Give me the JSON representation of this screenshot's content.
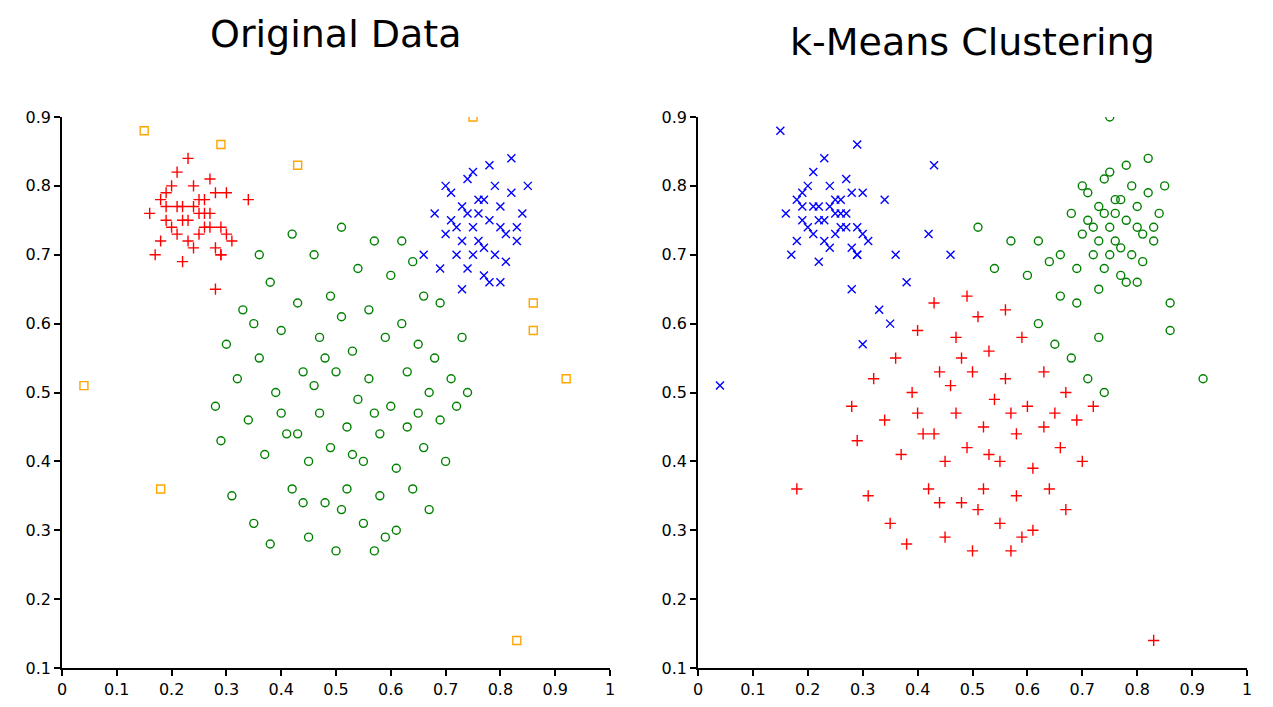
{
  "chart_data": [
    {
      "type": "scatter",
      "title": "Original Data",
      "xlim": [
        0,
        1
      ],
      "xticks": [
        0,
        0.1,
        0.2,
        0.3,
        0.4,
        0.5,
        0.6,
        0.7,
        0.8,
        0.9,
        1
      ],
      "ylim": [
        0.1,
        0.9
      ],
      "yticks": [
        0.1,
        0.2,
        0.3,
        0.4,
        0.5,
        0.6,
        0.7,
        0.8,
        0.9
      ],
      "grid": false,
      "series": [
        {
          "color": "#008000",
          "marker": "circle",
          "x": [
            0.28,
            0.29,
            0.3,
            0.31,
            0.32,
            0.33,
            0.34,
            0.35,
            0.36,
            0.36,
            0.37,
            0.38,
            0.38,
            0.39,
            0.4,
            0.41,
            0.42,
            0.42,
            0.43,
            0.44,
            0.45,
            0.45,
            0.46,
            0.47,
            0.47,
            0.48,
            0.49,
            0.49,
            0.5,
            0.5,
            0.51,
            0.51,
            0.52,
            0.52,
            0.53,
            0.54,
            0.54,
            0.55,
            0.55,
            0.56,
            0.56,
            0.57,
            0.57,
            0.58,
            0.58,
            0.59,
            0.6,
            0.6,
            0.61,
            0.61,
            0.62,
            0.63,
            0.63,
            0.64,
            0.64,
            0.65,
            0.66,
            0.66,
            0.67,
            0.67,
            0.68,
            0.69,
            0.69,
            0.7,
            0.71,
            0.72,
            0.73,
            0.74,
            0.62,
            0.44,
            0.4,
            0.46,
            0.53,
            0.48,
            0.57,
            0.43,
            0.51,
            0.35,
            0.59,
            0.65
          ],
          "values": [
            0.48,
            0.43,
            0.57,
            0.35,
            0.52,
            0.62,
            0.46,
            0.31,
            0.7,
            0.55,
            0.41,
            0.66,
            0.28,
            0.5,
            0.59,
            0.44,
            0.73,
            0.36,
            0.63,
            0.53,
            0.4,
            0.29,
            0.7,
            0.58,
            0.47,
            0.34,
            0.64,
            0.42,
            0.53,
            0.27,
            0.74,
            0.61,
            0.45,
            0.36,
            0.56,
            0.68,
            0.49,
            0.31,
            0.4,
            0.62,
            0.52,
            0.72,
            0.27,
            0.44,
            0.35,
            0.58,
            0.48,
            0.67,
            0.39,
            0.3,
            0.6,
            0.53,
            0.45,
            0.69,
            0.36,
            0.57,
            0.42,
            0.64,
            0.5,
            0.33,
            0.55,
            0.46,
            0.63,
            0.4,
            0.52,
            0.48,
            0.58,
            0.5,
            0.72,
            0.34,
            0.47,
            0.51,
            0.41,
            0.55,
            0.47,
            0.44,
            0.33,
            0.6,
            0.29,
            0.47
          ]
        },
        {
          "color": "#ff0000",
          "marker": "plus",
          "x": [
            0.16,
            0.18,
            0.19,
            0.2,
            0.21,
            0.22,
            0.23,
            0.24,
            0.25,
            0.26,
            0.27,
            0.28,
            0.29,
            0.3,
            0.31,
            0.17,
            0.19,
            0.21,
            0.23,
            0.25,
            0.27,
            0.29,
            0.18,
            0.2,
            0.22,
            0.24,
            0.26,
            0.28,
            0.3,
            0.19,
            0.21,
            0.23,
            0.25,
            0.27,
            0.22,
            0.24,
            0.26,
            0.28,
            0.34,
            0.29
          ],
          "values": [
            0.76,
            0.72,
            0.79,
            0.74,
            0.82,
            0.77,
            0.75,
            0.8,
            0.73,
            0.78,
            0.76,
            0.71,
            0.74,
            0.79,
            0.72,
            0.7,
            0.77,
            0.73,
            0.84,
            0.76,
            0.81,
            0.7,
            0.78,
            0.8,
            0.75,
            0.71,
            0.76,
            0.79,
            0.73,
            0.75,
            0.77,
            0.72,
            0.78,
            0.74,
            0.69,
            0.77,
            0.74,
            0.65,
            0.78,
            0.7
          ]
        },
        {
          "color": "#0000ff",
          "marker": "x",
          "x": [
            0.68,
            0.7,
            0.71,
            0.72,
            0.73,
            0.74,
            0.75,
            0.76,
            0.77,
            0.78,
            0.79,
            0.8,
            0.81,
            0.82,
            0.83,
            0.69,
            0.71,
            0.73,
            0.75,
            0.77,
            0.79,
            0.81,
            0.84,
            0.72,
            0.74,
            0.76,
            0.78,
            0.8,
            0.74,
            0.77,
            0.7,
            0.66,
            0.85,
            0.82,
            0.75,
            0.78,
            0.73,
            0.76,
            0.8,
            0.83
          ],
          "values": [
            0.76,
            0.73,
            0.79,
            0.7,
            0.77,
            0.81,
            0.74,
            0.72,
            0.78,
            0.75,
            0.7,
            0.77,
            0.73,
            0.79,
            0.72,
            0.68,
            0.75,
            0.72,
            0.82,
            0.67,
            0.8,
            0.69,
            0.76,
            0.74,
            0.68,
            0.78,
            0.66,
            0.74,
            0.76,
            0.71,
            0.8,
            0.7,
            0.8,
            0.84,
            0.7,
            0.83,
            0.65,
            0.76,
            0.66,
            0.74
          ]
        },
        {
          "color": "#ffa500",
          "marker": "square",
          "x": [
            0.04,
            0.15,
            0.18,
            0.29,
            0.43,
            0.75,
            0.86,
            0.86,
            0.92,
            0.83
          ],
          "values": [
            0.51,
            0.88,
            0.36,
            0.86,
            0.83,
            0.9,
            0.63,
            0.59,
            0.52,
            0.14
          ]
        }
      ]
    },
    {
      "type": "scatter",
      "title": "k-Means Clustering",
      "xlim": [
        0,
        1
      ],
      "xticks": [
        0,
        0.1,
        0.2,
        0.3,
        0.4,
        0.5,
        0.6,
        0.7,
        0.8,
        0.9,
        1
      ],
      "ylim": [
        0.1,
        0.9
      ],
      "yticks": [
        0.1,
        0.2,
        0.3,
        0.4,
        0.5,
        0.6,
        0.7,
        0.8,
        0.9
      ],
      "grid": false,
      "series": [
        {
          "color": "#0000ff",
          "marker": "x",
          "x": [
            0.16,
            0.18,
            0.19,
            0.2,
            0.21,
            0.22,
            0.23,
            0.24,
            0.25,
            0.26,
            0.27,
            0.28,
            0.29,
            0.3,
            0.31,
            0.17,
            0.19,
            0.21,
            0.23,
            0.25,
            0.27,
            0.29,
            0.18,
            0.2,
            0.22,
            0.24,
            0.26,
            0.28,
            0.3,
            0.19,
            0.21,
            0.23,
            0.25,
            0.27,
            0.22,
            0.24,
            0.26,
            0.28,
            0.34,
            0.29,
            0.04,
            0.15,
            0.29,
            0.43,
            0.3,
            0.33,
            0.36,
            0.38,
            0.42,
            0.35,
            0.46
          ],
          "values": [
            0.76,
            0.72,
            0.79,
            0.74,
            0.82,
            0.77,
            0.75,
            0.8,
            0.73,
            0.78,
            0.76,
            0.71,
            0.74,
            0.79,
            0.72,
            0.7,
            0.77,
            0.73,
            0.84,
            0.76,
            0.81,
            0.7,
            0.78,
            0.8,
            0.75,
            0.71,
            0.76,
            0.79,
            0.73,
            0.75,
            0.77,
            0.72,
            0.78,
            0.74,
            0.69,
            0.77,
            0.74,
            0.65,
            0.78,
            0.7,
            0.51,
            0.88,
            0.86,
            0.83,
            0.57,
            0.62,
            0.7,
            0.66,
            0.73,
            0.6,
            0.7
          ]
        },
        {
          "color": "#008000",
          "marker": "circle",
          "x": [
            0.68,
            0.7,
            0.71,
            0.72,
            0.73,
            0.74,
            0.75,
            0.76,
            0.77,
            0.78,
            0.79,
            0.8,
            0.81,
            0.82,
            0.83,
            0.69,
            0.71,
            0.73,
            0.75,
            0.77,
            0.79,
            0.81,
            0.84,
            0.72,
            0.74,
            0.76,
            0.78,
            0.8,
            0.74,
            0.77,
            0.7,
            0.66,
            0.85,
            0.82,
            0.75,
            0.78,
            0.73,
            0.76,
            0.8,
            0.83,
            0.75,
            0.86,
            0.86,
            0.92,
            0.51,
            0.54,
            0.57,
            0.6,
            0.62,
            0.64,
            0.65,
            0.66,
            0.68,
            0.69,
            0.71,
            0.73,
            0.74,
            0.62
          ],
          "values": [
            0.76,
            0.73,
            0.79,
            0.7,
            0.77,
            0.81,
            0.74,
            0.72,
            0.78,
            0.75,
            0.7,
            0.77,
            0.73,
            0.79,
            0.72,
            0.68,
            0.75,
            0.72,
            0.82,
            0.67,
            0.8,
            0.69,
            0.76,
            0.74,
            0.68,
            0.78,
            0.66,
            0.74,
            0.76,
            0.71,
            0.8,
            0.7,
            0.8,
            0.84,
            0.7,
            0.83,
            0.65,
            0.76,
            0.66,
            0.74,
            0.9,
            0.63,
            0.59,
            0.52,
            0.74,
            0.68,
            0.72,
            0.67,
            0.6,
            0.69,
            0.57,
            0.64,
            0.55,
            0.63,
            0.52,
            0.58,
            0.5,
            0.72
          ]
        },
        {
          "color": "#ff0000",
          "marker": "plus",
          "x": [
            0.28,
            0.29,
            0.31,
            0.32,
            0.34,
            0.35,
            0.36,
            0.37,
            0.38,
            0.39,
            0.4,
            0.41,
            0.42,
            0.43,
            0.44,
            0.45,
            0.45,
            0.47,
            0.47,
            0.48,
            0.49,
            0.49,
            0.5,
            0.5,
            0.51,
            0.52,
            0.52,
            0.53,
            0.54,
            0.55,
            0.55,
            0.56,
            0.56,
            0.57,
            0.58,
            0.58,
            0.59,
            0.6,
            0.61,
            0.61,
            0.63,
            0.63,
            0.64,
            0.66,
            0.67,
            0.67,
            0.69,
            0.7,
            0.72,
            0.44,
            0.4,
            0.46,
            0.53,
            0.48,
            0.57,
            0.43,
            0.51,
            0.59,
            0.65,
            0.18,
            0.83
          ],
          "values": [
            0.48,
            0.43,
            0.35,
            0.52,
            0.46,
            0.31,
            0.55,
            0.41,
            0.28,
            0.5,
            0.59,
            0.44,
            0.36,
            0.63,
            0.53,
            0.4,
            0.29,
            0.58,
            0.47,
            0.34,
            0.64,
            0.42,
            0.53,
            0.27,
            0.61,
            0.45,
            0.36,
            0.56,
            0.49,
            0.31,
            0.4,
            0.62,
            0.52,
            0.27,
            0.44,
            0.35,
            0.58,
            0.48,
            0.39,
            0.3,
            0.53,
            0.45,
            0.36,
            0.42,
            0.5,
            0.33,
            0.46,
            0.4,
            0.48,
            0.34,
            0.47,
            0.51,
            0.41,
            0.55,
            0.47,
            0.44,
            0.33,
            0.29,
            0.47,
            0.36,
            0.14
          ]
        }
      ]
    }
  ]
}
